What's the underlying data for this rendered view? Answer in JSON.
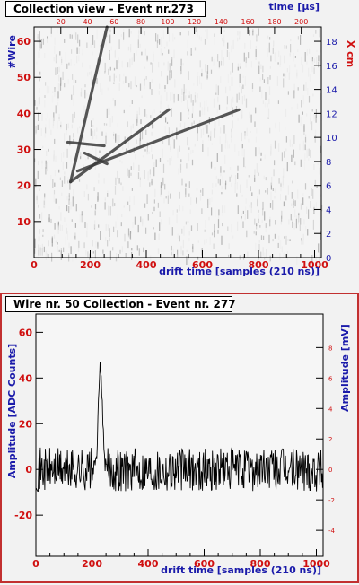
{
  "colors": {
    "panel_border": "#c23030",
    "red_label": "#d01010",
    "blue_label": "#1a1aaa",
    "frame": "#000000",
    "track": "#3a3a3a",
    "noise_dark": "#9a9a9a",
    "noise_light": "#e6e6e6"
  },
  "chart_data": [
    {
      "type": "heatmap",
      "title": "Collection view - Event nr.273",
      "xlabel": "drift time [samples (210 ns)]",
      "ylabel": "#Wire",
      "x2label": "time [µs]",
      "y2label": "X cm",
      "xlim": [
        0,
        1024
      ],
      "ylim": [
        0,
        64
      ],
      "x2lim": [
        0,
        215
      ],
      "y2lim": [
        0,
        19.2
      ],
      "x_ticks": [
        "0",
        "200",
        "400",
        "600",
        "800",
        "1000"
      ],
      "y_ticks": [
        "10",
        "20",
        "30",
        "40",
        "50",
        "60"
      ],
      "x2_ticks": [
        "20",
        "40",
        "60",
        "80",
        "100",
        "120",
        "140",
        "160",
        "180",
        "200"
      ],
      "y2_ticks": [
        "0",
        "2",
        "4",
        "6",
        "8",
        "10",
        "12",
        "14",
        "16",
        "18"
      ],
      "tracks": [
        {
          "x": [
            130,
            260
          ],
          "y": [
            21,
            64
          ]
        },
        {
          "x": [
            130,
            480
          ],
          "y": [
            21,
            41
          ]
        },
        {
          "x": [
            155,
            730
          ],
          "y": [
            24,
            41
          ]
        },
        {
          "x": [
            120,
            250
          ],
          "y": [
            32,
            31
          ]
        },
        {
          "x": [
            180,
            260
          ],
          "y": [
            29,
            26
          ]
        }
      ]
    },
    {
      "type": "line",
      "title": "Wire nr. 50 Collection - Event nr. 277",
      "xlabel": "drift time [samples (210 ns)]",
      "ylabel": "Amplitude [ADC Counts]",
      "y2label": "Amplitude [mV]",
      "xlim": [
        0,
        1024
      ],
      "ylim": [
        -38,
        68
      ],
      "y2lim": [
        -5.7,
        10.2
      ],
      "x_ticks": [
        "0",
        "200",
        "400",
        "600",
        "800",
        "1000"
      ],
      "y_ticks": [
        "-20",
        "0",
        "20",
        "40",
        "60"
      ],
      "y2_ticks": [
        "-4",
        "-2",
        "0",
        "2",
        "4",
        "6",
        "8"
      ],
      "peak": {
        "x": 230,
        "y": 45
      },
      "noise_rms_adc": 6
    }
  ]
}
